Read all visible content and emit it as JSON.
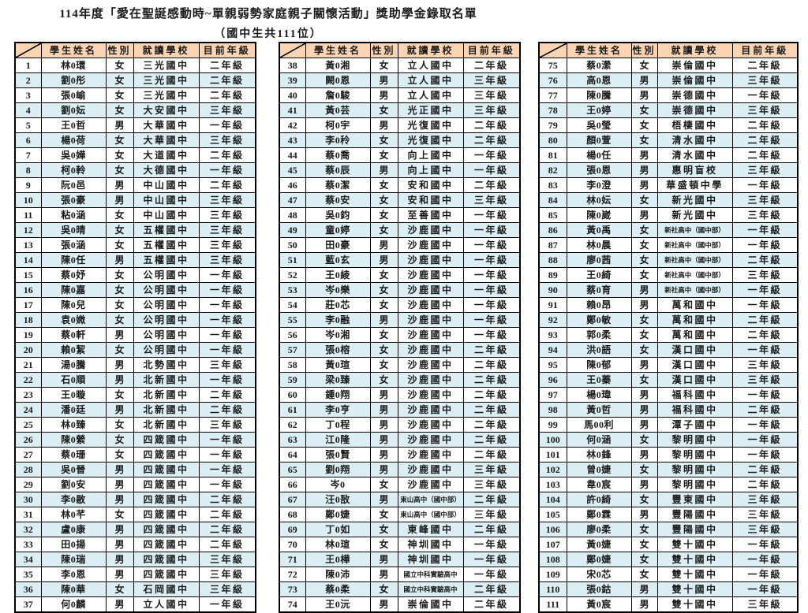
{
  "title": "114年度「愛在聖誕感動時~單親弱勢家庭親子關懷活動」獎助學金錄取名單",
  "subtitle": "（國中生共111位）",
  "colors": {
    "header_bg": "#FBD4B4",
    "row_alt_bg": "#DAEEF3",
    "row_bg": "#FFFFFF",
    "border": "#000000"
  },
  "columns": [
    "學生姓名",
    "性別",
    "就讀學校",
    "目前年級"
  ],
  "tables": [
    {
      "rows": [
        [
          "1",
          "林0環",
          "女",
          "三光國中",
          "二年級"
        ],
        [
          "2",
          "劉0彤",
          "女",
          "三光國中",
          "二年級"
        ],
        [
          "3",
          "張0崳",
          "女",
          "三光國中",
          "二年級"
        ],
        [
          "4",
          "劉0妘",
          "女",
          "大安國中",
          "三年級"
        ],
        [
          "5",
          "王0哲",
          "男",
          "大華國中",
          "一年級"
        ],
        [
          "6",
          "楊0荷",
          "女",
          "大華國中",
          "三年級"
        ],
        [
          "7",
          "吳0嬅",
          "女",
          "大道國中",
          "二年級"
        ],
        [
          "8",
          "柯0軨",
          "女",
          "大德國中",
          "一年級"
        ],
        [
          "9",
          "阮0邑",
          "男",
          "中山國中",
          "二年級"
        ],
        [
          "10",
          "張0豪",
          "男",
          "中山國中",
          "三年級"
        ],
        [
          "11",
          "粘0涵",
          "女",
          "中山國中",
          "三年級"
        ],
        [
          "12",
          "吳0晴",
          "女",
          "五權國中",
          "三年級"
        ],
        [
          "13",
          "張0涵",
          "女",
          "五權國中",
          "三年級"
        ],
        [
          "14",
          "陳0任",
          "男",
          "五權國中",
          "三年級"
        ],
        [
          "15",
          "蔡0妤",
          "女",
          "公明國中",
          "一年級"
        ],
        [
          "16",
          "陳0嘉",
          "女",
          "公明國中",
          "一年級"
        ],
        [
          "17",
          "陳0兒",
          "女",
          "公明國中",
          "一年級"
        ],
        [
          "18",
          "袁0媺",
          "女",
          "公明國中",
          "一年級"
        ],
        [
          "19",
          "蔡0軒",
          "男",
          "公明國中",
          "一年級"
        ],
        [
          "20",
          "賴0絜",
          "女",
          "公明國中",
          "一年級"
        ],
        [
          "21",
          "湯0騰",
          "男",
          "北勢國中",
          "三年級"
        ],
        [
          "22",
          "石0順",
          "男",
          "北新國中",
          "一年級"
        ],
        [
          "23",
          "王0暶",
          "女",
          "北新國中",
          "二年級"
        ],
        [
          "24",
          "潘0廷",
          "男",
          "北新國中",
          "二年級"
        ],
        [
          "25",
          "林0臻",
          "女",
          "北新國中",
          "三年級"
        ],
        [
          "26",
          "陳0縈",
          "女",
          "四箴國中",
          "一年級"
        ],
        [
          "27",
          "蔡0珊",
          "女",
          "四箴國中",
          "一年級"
        ],
        [
          "28",
          "吳0晉",
          "男",
          "四箴國中",
          "一年級"
        ],
        [
          "29",
          "劉0安",
          "男",
          "四箴國中",
          "一年級"
        ],
        [
          "30",
          "李0敭",
          "男",
          "四箴國中",
          "二年級"
        ],
        [
          "31",
          "林0芊",
          "女",
          "四箴國中",
          "二年級"
        ],
        [
          "32",
          "盧0康",
          "男",
          "四箴國中",
          "二年級"
        ],
        [
          "33",
          "田0揚",
          "男",
          "四箴國中",
          "二年級"
        ],
        [
          "34",
          "陳0瑞",
          "男",
          "四箴國中",
          "三年級"
        ],
        [
          "35",
          "李0恩",
          "男",
          "四箴國中",
          "三年級"
        ],
        [
          "36",
          "陳0華",
          "女",
          "石岡國中",
          "三年級"
        ],
        [
          "37",
          "何0麟",
          "男",
          "立人國中",
          "一年級"
        ]
      ]
    },
    {
      "rows": [
        [
          "38",
          "黃0湘",
          "女",
          "立人國中",
          "二年級"
        ],
        [
          "39",
          "闕0恩",
          "男",
          "立人國中",
          "三年級"
        ],
        [
          "40",
          "詹0駿",
          "男",
          "立人國中",
          "三年級"
        ],
        [
          "41",
          "黃0芸",
          "女",
          "光正國中",
          "三年級"
        ],
        [
          "42",
          "柯0宇",
          "男",
          "光復國中",
          "二年級"
        ],
        [
          "43",
          "李0秢",
          "女",
          "光復國中",
          "二年級"
        ],
        [
          "44",
          "蔡0喬",
          "女",
          "向上國中",
          "一年級"
        ],
        [
          "45",
          "蔡0辰",
          "男",
          "向上國中",
          "一年級"
        ],
        [
          "46",
          "蔡0潔",
          "女",
          "安和國中",
          "二年級"
        ],
        [
          "47",
          "蔡0安",
          "女",
          "安和國中",
          "三年級"
        ],
        [
          "48",
          "吳0鈞",
          "女",
          "至善國中",
          "一年級"
        ],
        [
          "49",
          "童0婷",
          "女",
          "沙鹿國中",
          "一年級"
        ],
        [
          "50",
          "田0豪",
          "男",
          "沙鹿國中",
          "一年級"
        ],
        [
          "51",
          "藍0玄",
          "男",
          "沙鹿國中",
          "一年級"
        ],
        [
          "52",
          "王0綾",
          "女",
          "沙鹿國中",
          "一年級"
        ],
        [
          "53",
          "岑0樂",
          "女",
          "沙鹿國中",
          "一年級"
        ],
        [
          "54",
          "莊0芯",
          "女",
          "沙鹿國中",
          "一年級"
        ],
        [
          "55",
          "李0融",
          "男",
          "沙鹿國中",
          "一年級"
        ],
        [
          "56",
          "岑0湘",
          "女",
          "沙鹿國中",
          "一年級"
        ],
        [
          "57",
          "張0榕",
          "女",
          "沙鹿國中",
          "二年級"
        ],
        [
          "58",
          "黃0瑄",
          "女",
          "沙鹿國中",
          "二年級"
        ],
        [
          "59",
          "梁0臻",
          "女",
          "沙鹿國中",
          "二年級"
        ],
        [
          "60",
          "鍾0翔",
          "男",
          "沙鹿國中",
          "二年級"
        ],
        [
          "61",
          "李0亨",
          "男",
          "沙鹿國中",
          "二年級"
        ],
        [
          "62",
          "丁0程",
          "男",
          "沙鹿國中",
          "二年級"
        ],
        [
          "63",
          "江0隆",
          "男",
          "沙鹿國中",
          "二年級"
        ],
        [
          "64",
          "張0賢",
          "男",
          "沙鹿國中",
          "二年級"
        ],
        [
          "65",
          "劉0翔",
          "男",
          "沙鹿國中",
          "三年級"
        ],
        [
          "66",
          "岑0",
          "女",
          "沙鹿國中",
          "三年級"
        ],
        [
          "67",
          "汪0敔",
          "男",
          "東山高中（國中部）",
          "二年級"
        ],
        [
          "68",
          "鄭0婕",
          "女",
          "東山高中（國中部）",
          "三年級"
        ],
        [
          "69",
          "丁0如",
          "女",
          "東峰國中",
          "二年級"
        ],
        [
          "70",
          "林0瑄",
          "女",
          "神圳國中",
          "一年級"
        ],
        [
          "71",
          "王0樺",
          "男",
          "神圳國中",
          "一年級"
        ],
        [
          "72",
          "陳0沛",
          "男",
          "國立中科實驗高中",
          "一年級"
        ],
        [
          "73",
          "蔡0柔",
          "女",
          "國立中科實驗高中",
          "二年級"
        ],
        [
          "74",
          "王0沅",
          "男",
          "崇倫國中",
          "二年級"
        ]
      ]
    },
    {
      "rows": [
        [
          "75",
          "蔡0瀠",
          "女",
          "崇倫國中",
          "二年級"
        ],
        [
          "76",
          "高0恩",
          "男",
          "崇倫國中",
          "三年級"
        ],
        [
          "77",
          "陳0騰",
          "男",
          "崇德國中",
          "一年級"
        ],
        [
          "78",
          "王0婷",
          "女",
          "崇德國中",
          "三年級"
        ],
        [
          "79",
          "吳0瑩",
          "女",
          "梧棲國中",
          "二年級"
        ],
        [
          "80",
          "顏0萱",
          "女",
          "清水國中",
          "二年級"
        ],
        [
          "81",
          "楊0任",
          "男",
          "清水國中",
          "二年級"
        ],
        [
          "82",
          "張0恩",
          "男",
          "惠明盲校",
          "三年級"
        ],
        [
          "83",
          "李0澄",
          "男",
          "華盛頓中學",
          "一年級"
        ],
        [
          "84",
          "林0妘",
          "女",
          "新光國中",
          "三年級"
        ],
        [
          "85",
          "陳0崴",
          "男",
          "新光國中",
          "三年級"
        ],
        [
          "86",
          "黃0禹",
          "女",
          "新社高中（國中部）",
          "一年級"
        ],
        [
          "87",
          "林0晨",
          "女",
          "新社高中（國中部）",
          "一年級"
        ],
        [
          "88",
          "廖0茜",
          "女",
          "新社高中（國中部）",
          "二年級"
        ],
        [
          "89",
          "王0綺",
          "女",
          "新社高中（國中部）",
          "三年級"
        ],
        [
          "90",
          "蔡0育",
          "男",
          "新社高中（國中部）",
          "一年級"
        ],
        [
          "91",
          "賴0昂",
          "男",
          "萬和國中",
          "一年級"
        ],
        [
          "92",
          "鄭0敏",
          "女",
          "萬和國中",
          "二年級"
        ],
        [
          "93",
          "郭0柔",
          "女",
          "萬和國中",
          "二年級"
        ],
        [
          "94",
          "洪0語",
          "女",
          "漢口國中",
          "一年級"
        ],
        [
          "95",
          "陳0郁",
          "男",
          "漢口國中",
          "三年級"
        ],
        [
          "96",
          "王0蓁",
          "女",
          "漢口國中",
          "三年級"
        ],
        [
          "97",
          "楊0瑋",
          "男",
          "福科國中",
          "一年級"
        ],
        [
          "98",
          "黃0哲",
          "男",
          "福科國中",
          "二年級"
        ],
        [
          "99",
          "馬00利",
          "男",
          "潭子國中",
          "一年級"
        ],
        [
          "100",
          "何0涵",
          "女",
          "黎明國中",
          "一年級"
        ],
        [
          "101",
          "林0鋒",
          "男",
          "黎明國中",
          "一年級"
        ],
        [
          "102",
          "曾0婕",
          "女",
          "黎明國中",
          "二年級"
        ],
        [
          "103",
          "韋0宸",
          "男",
          "黎明國中",
          "二年級"
        ],
        [
          "104",
          "許0綺",
          "女",
          "豐東國中",
          "三年級"
        ],
        [
          "105",
          "鄭0霖",
          "男",
          "豐陽國中",
          "三年級"
        ],
        [
          "106",
          "廖0柔",
          "女",
          "豐陽國中",
          "三年級"
        ],
        [
          "107",
          "黃0婕",
          "女",
          "雙十國中",
          "一年級"
        ],
        [
          "108",
          "鄭0婕",
          "女",
          "雙十國中",
          "一年級"
        ],
        [
          "109",
          "宋0芯",
          "女",
          "雙十國中",
          "一年級"
        ],
        [
          "110",
          "張0鈷",
          "男",
          "雙十國中",
          "一年級"
        ],
        [
          "111",
          "黃0宸",
          "男",
          "雙十國中",
          "三年級"
        ]
      ]
    }
  ]
}
